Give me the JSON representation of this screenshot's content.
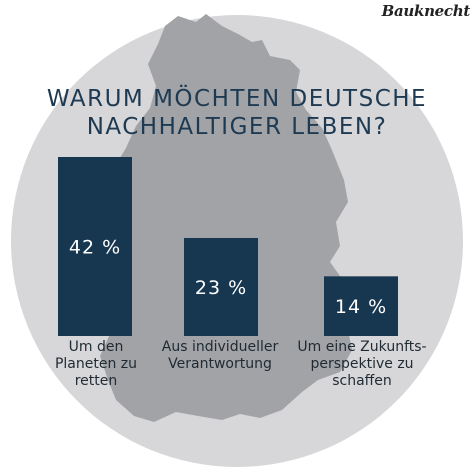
{
  "title_lines": [
    "WARUM MÖCHTEN DEUTSCHE",
    "NACHHALTIGER LEBEN?"
  ],
  "logo_text": "Bauknecht",
  "colors": {
    "bar": "#17364f",
    "circle": "#d7d7d9",
    "map": "#a2a3a6",
    "title": "#1e3a52",
    "label_text": "#1f2a33",
    "value_text": "#ffffff"
  },
  "chart_data": {
    "type": "bar",
    "categories": [
      "Um den Planeten zu retten",
      "Aus individueller Verantwortung",
      "Um eine Zukunftsperspektive zu schaffen"
    ],
    "category_label_lines": [
      [
        "Um den",
        "Planeten zu",
        "retten"
      ],
      [
        "Aus individueller",
        "Verantwortung"
      ],
      [
        "Um eine Zukunfts-",
        "perspektive zu",
        "schaffen"
      ]
    ],
    "values": [
      42,
      23,
      14
    ],
    "value_labels": [
      "42 %",
      "23 %",
      "14 %"
    ],
    "unit": "%",
    "title": "WARUM MÖCHTEN DEUTSCHE NACHHALTIGER LEBEN?",
    "xlabel": "",
    "ylabel": "",
    "grid": false,
    "legend": "none"
  }
}
